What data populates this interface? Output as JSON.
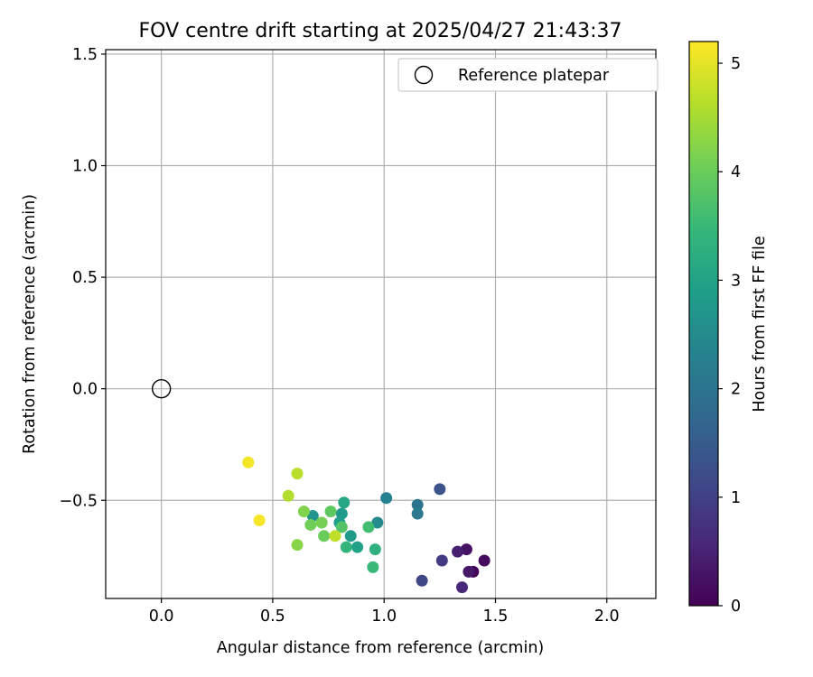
{
  "chart_data": {
    "type": "scatter",
    "title": "FOV centre drift starting at 2025/04/27 21:43:37",
    "xlabel": "Angular distance from reference (arcmin)",
    "ylabel": "Rotation from reference (arcmin)",
    "xlim": [
      -0.25,
      2.22
    ],
    "ylim": [
      -0.94,
      1.52
    ],
    "xticks": [
      0.0,
      0.5,
      1.0,
      1.5,
      2.0
    ],
    "xtick_labels": [
      "0.0",
      "0.5",
      "1.0",
      "1.5",
      "2.0"
    ],
    "yticks": [
      -0.5,
      0.0,
      0.5,
      1.0,
      1.5
    ],
    "ytick_labels": [
      "−0.5",
      "0.0",
      "0.5",
      "1.0",
      "1.5"
    ],
    "grid": true,
    "legend": {
      "placement": "top-right",
      "entries": [
        "Reference platepar"
      ]
    },
    "reference": {
      "x": 0.0,
      "y": 0.0,
      "label": "Reference platepar"
    },
    "colorbar": {
      "label": "Hours from first FF file",
      "colormap": "viridis",
      "range": [
        0,
        5.2
      ],
      "ticks": [
        0,
        1,
        2,
        3,
        4,
        5
      ],
      "tick_labels": [
        "0",
        "1",
        "2",
        "3",
        "4",
        "5"
      ]
    },
    "points": [
      {
        "x": 1.4,
        "y": -0.82,
        "h": 0.05
      },
      {
        "x": 1.45,
        "y": -0.77,
        "h": 0.15
      },
      {
        "x": 1.37,
        "y": -0.72,
        "h": 0.25
      },
      {
        "x": 1.38,
        "y": -0.82,
        "h": 0.35
      },
      {
        "x": 1.33,
        "y": -0.73,
        "h": 0.45
      },
      {
        "x": 1.35,
        "y": -0.89,
        "h": 0.6
      },
      {
        "x": 1.26,
        "y": -0.77,
        "h": 0.9
      },
      {
        "x": 1.17,
        "y": -0.86,
        "h": 1.1
      },
      {
        "x": 1.25,
        "y": -0.45,
        "h": 1.3
      },
      {
        "x": 1.15,
        "y": -0.52,
        "h": 2.0
      },
      {
        "x": 1.15,
        "y": -0.56,
        "h": 2.1
      },
      {
        "x": 1.01,
        "y": -0.49,
        "h": 2.3
      },
      {
        "x": 0.97,
        "y": -0.6,
        "h": 2.5
      },
      {
        "x": 0.68,
        "y": -0.57,
        "h": 2.7
      },
      {
        "x": 0.81,
        "y": -0.56,
        "h": 2.8
      },
      {
        "x": 0.85,
        "y": -0.66,
        "h": 2.8
      },
      {
        "x": 0.8,
        "y": -0.6,
        "h": 2.9
      },
      {
        "x": 0.88,
        "y": -0.71,
        "h": 2.95
      },
      {
        "x": 0.82,
        "y": -0.51,
        "h": 3.1
      },
      {
        "x": 0.96,
        "y": -0.72,
        "h": 3.3
      },
      {
        "x": 0.83,
        "y": -0.71,
        "h": 3.4
      },
      {
        "x": 0.95,
        "y": -0.8,
        "h": 3.5
      },
      {
        "x": 0.93,
        "y": -0.62,
        "h": 3.6
      },
      {
        "x": 0.81,
        "y": -0.62,
        "h": 3.8
      },
      {
        "x": 0.76,
        "y": -0.55,
        "h": 3.9
      },
      {
        "x": 0.73,
        "y": -0.66,
        "h": 4.0
      },
      {
        "x": 0.67,
        "y": -0.61,
        "h": 4.05
      },
      {
        "x": 0.72,
        "y": -0.6,
        "h": 4.1
      },
      {
        "x": 0.64,
        "y": -0.55,
        "h": 4.2
      },
      {
        "x": 0.61,
        "y": -0.7,
        "h": 4.25
      },
      {
        "x": 0.78,
        "y": -0.66,
        "h": 4.7
      },
      {
        "x": 0.57,
        "y": -0.48,
        "h": 4.6
      },
      {
        "x": 0.61,
        "y": -0.38,
        "h": 4.65
      },
      {
        "x": 0.39,
        "y": -0.33,
        "h": 5.1
      },
      {
        "x": 0.44,
        "y": -0.59,
        "h": 5.15
      }
    ]
  }
}
